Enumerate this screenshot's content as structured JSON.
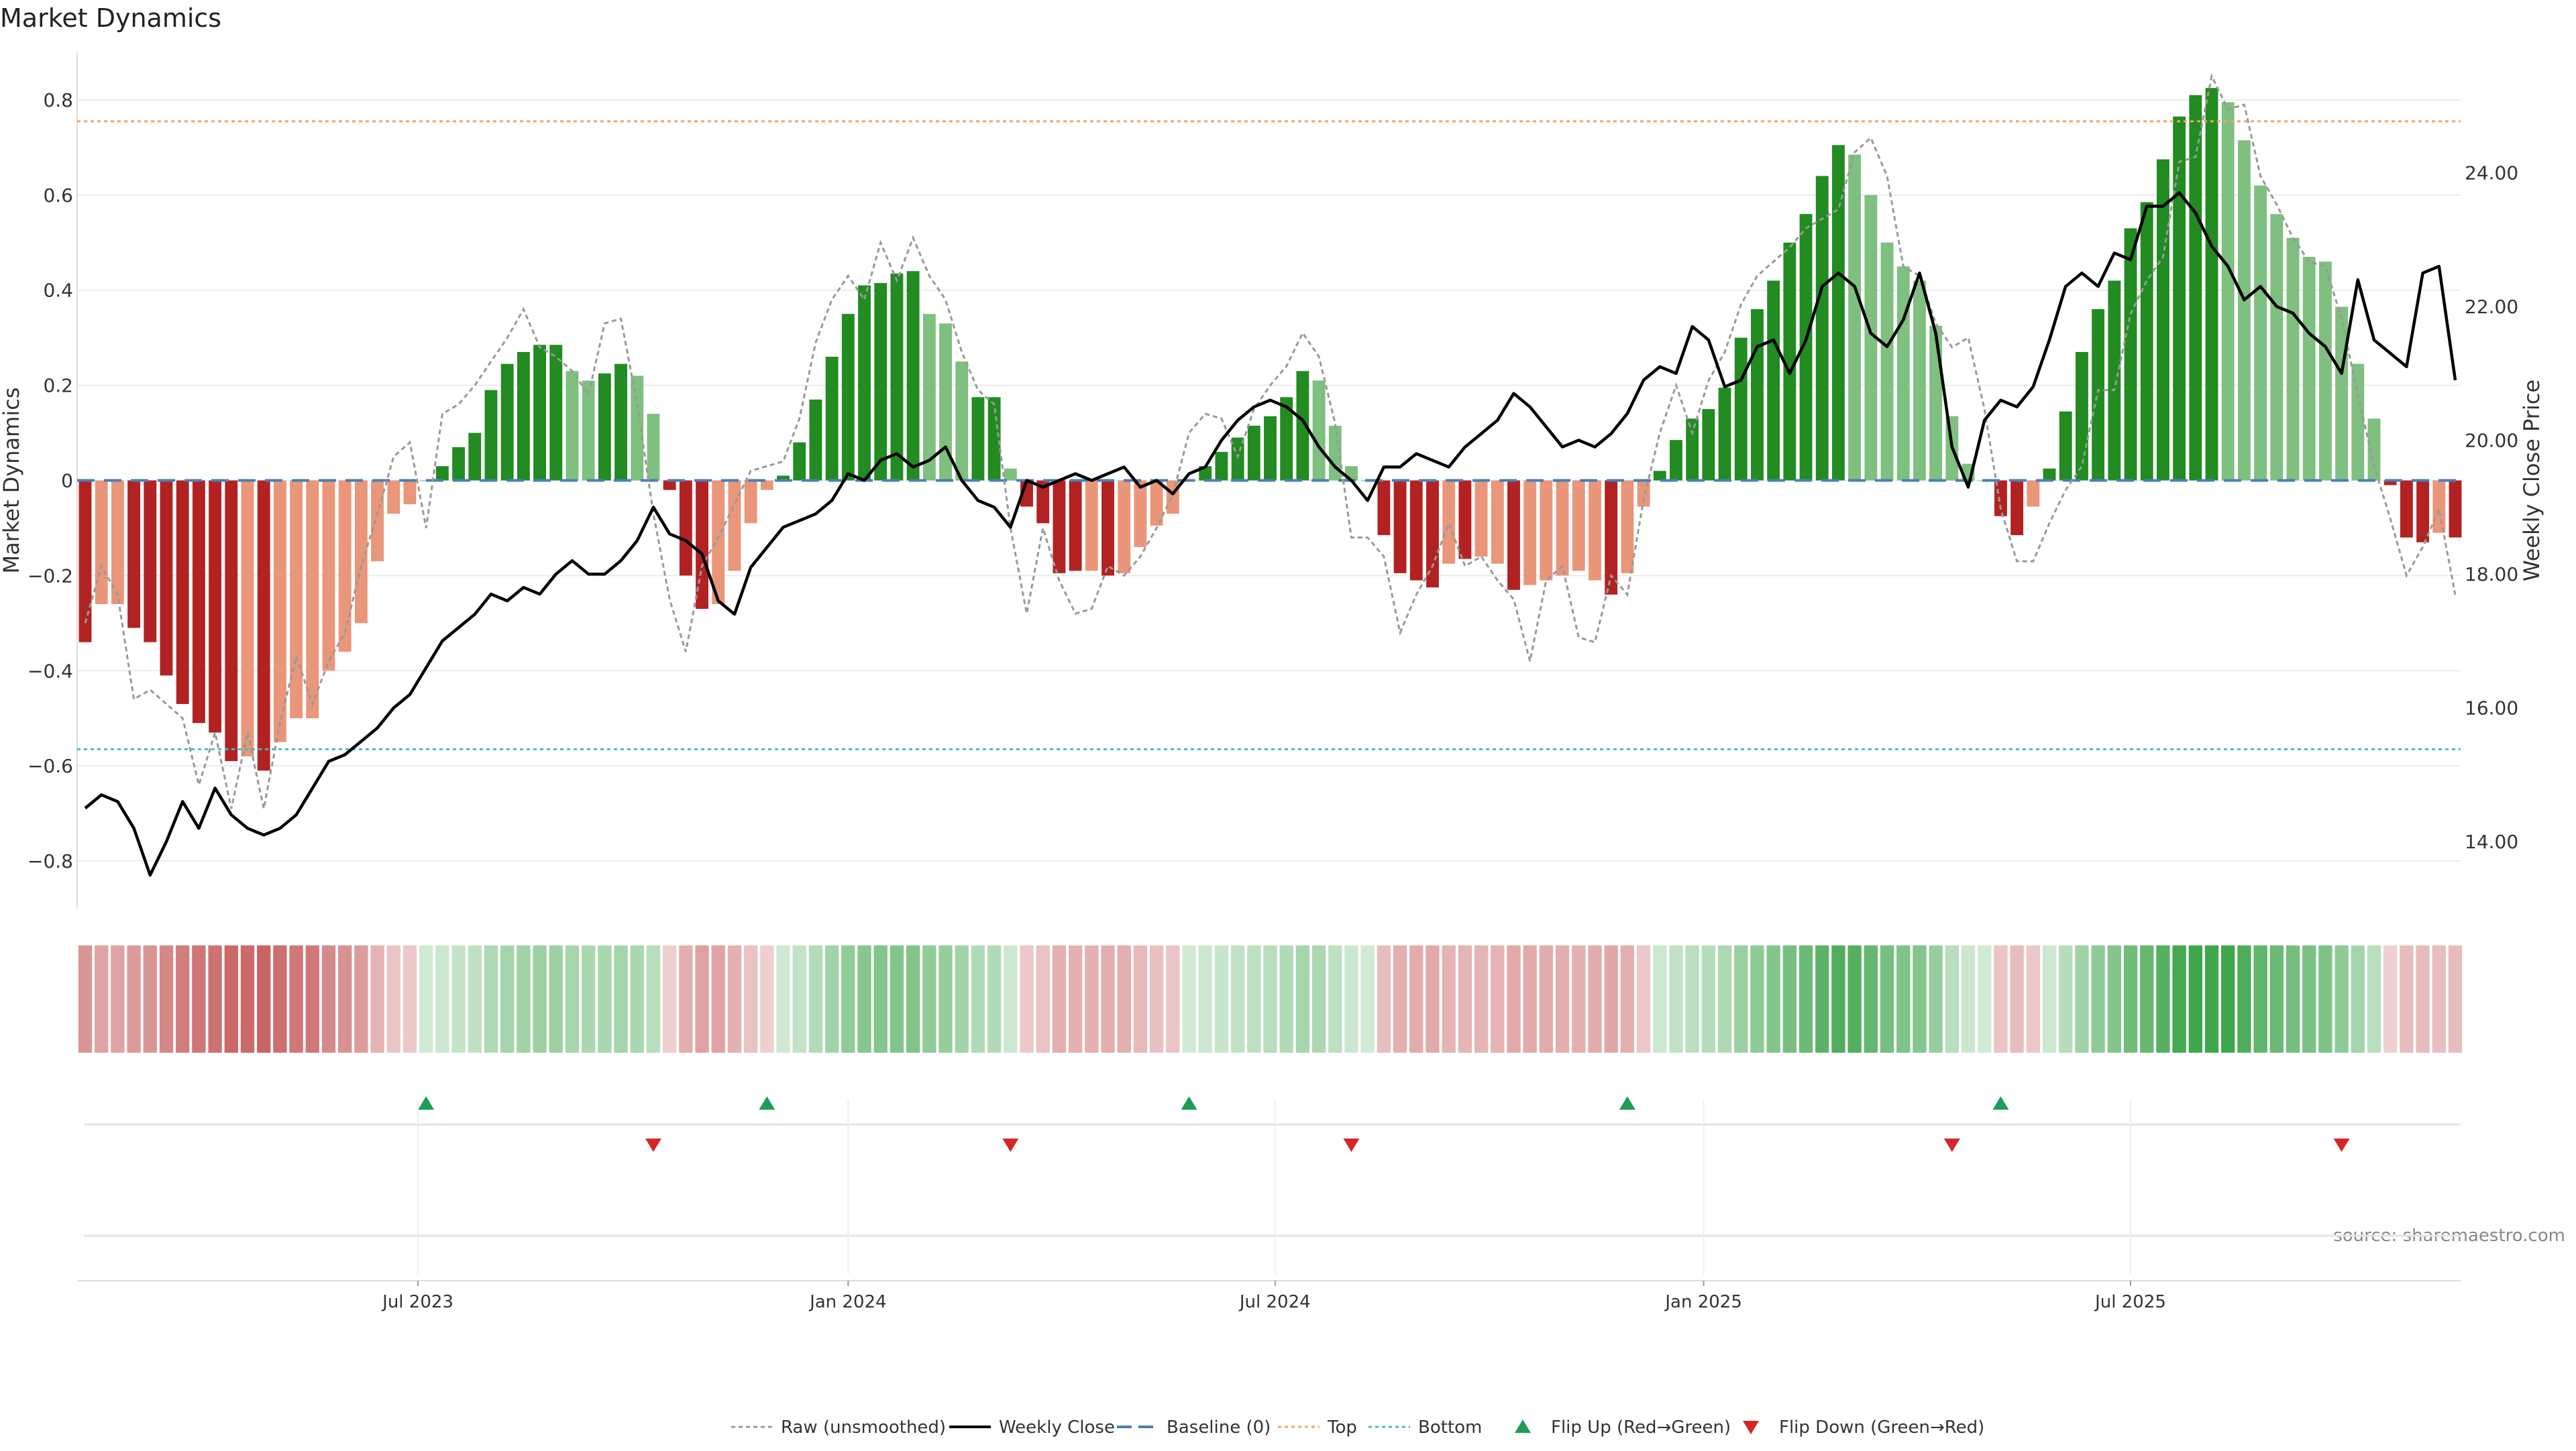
{
  "chart_data": {
    "type": "bar",
    "title": "Market Dynamics",
    "ylabel_left": "Market Dynamics",
    "ylabel_right": "Weekly Close Price",
    "source": "source: sharemaestro.com",
    "ylim_left": [
      -0.9,
      0.9
    ],
    "ylim_right": [
      13.0,
      25.8
    ],
    "y_ticks_left": [
      0.8,
      0.6,
      0.4,
      0.2,
      0,
      -0.2,
      -0.4,
      -0.6,
      -0.8
    ],
    "y_tick_labels_left": [
      "0.8",
      "0.6",
      "0.4",
      "0.2",
      "0",
      "−0.2",
      "−0.4",
      "−0.6",
      "−0.8"
    ],
    "y_ticks_right": [
      24,
      22,
      20,
      18,
      16,
      14
    ],
    "y_tick_labels_right": [
      "24.00",
      "22.00",
      "20.00",
      "18.00",
      "16.00",
      "14.00"
    ],
    "x_tick_labels": [
      {
        "week": 20.5,
        "label": "Jul 2023"
      },
      {
        "week": 47,
        "label": "Jan 2024"
      },
      {
        "week": 73.3,
        "label": "Jul 2024"
      },
      {
        "week": 99.7,
        "label": "Jan 2025"
      },
      {
        "week": 126,
        "label": "Jul 2025"
      }
    ],
    "top_level": 0.755,
    "bottom_level": -0.565,
    "grid": true,
    "legend_position": "bottom-center",
    "colors": {
      "strong_red": "#b22222",
      "weak_red": "#e9967a",
      "strong_green": "#228b22",
      "weak_green": "#7fbf7f",
      "top_line": "#f4a460",
      "bottom_line": "#40bfc4",
      "baseline": "#4a7fb5",
      "close_line": "#000000",
      "raw_line": "#999999",
      "flip_up": "#1f9d55",
      "flip_down": "#d62728"
    },
    "smoothed": [
      -0.34,
      -0.26,
      -0.26,
      -0.31,
      -0.34,
      -0.41,
      -0.47,
      -0.51,
      -0.53,
      -0.59,
      -0.58,
      -0.61,
      -0.55,
      -0.5,
      -0.5,
      -0.4,
      -0.36,
      -0.3,
      -0.17,
      -0.07,
      -0.05,
      0,
      0.03,
      0.07,
      0.1,
      0.19,
      0.245,
      0.27,
      0.285,
      0.285,
      0.23,
      0.21,
      0.225,
      0.245,
      0.22,
      0.14,
      -0.02,
      -0.2,
      -0.27,
      -0.26,
      -0.19,
      -0.09,
      -0.02,
      0.01,
      0.08,
      0.17,
      0.26,
      0.35,
      0.41,
      0.415,
      0.435,
      0.44,
      0.35,
      0.33,
      0.25,
      0.175,
      0.175,
      0.025,
      -0.055,
      -0.09,
      -0.195,
      -0.19,
      -0.19,
      -0.2,
      -0.195,
      -0.14,
      -0.095,
      -0.07,
      0,
      0.03,
      0.06,
      0.09,
      0.115,
      0.135,
      0.175,
      0.23,
      0.21,
      0.115,
      0.03,
      0,
      -0.115,
      -0.195,
      -0.21,
      -0.225,
      -0.175,
      -0.165,
      -0.16,
      -0.175,
      -0.23,
      -0.22,
      -0.21,
      -0.2,
      -0.19,
      -0.21,
      -0.24,
      -0.195,
      -0.055,
      0.02,
      0.085,
      0.13,
      0.15,
      0.195,
      0.3,
      0.36,
      0.42,
      0.5,
      0.56,
      0.64,
      0.705,
      0.685,
      0.6,
      0.5,
      0.45,
      0.42,
      0.325,
      0.135,
      0.035,
      0,
      -0.075,
      -0.115,
      -0.055,
      0.025,
      0.145,
      0.27,
      0.36,
      0.42,
      0.53,
      0.585,
      0.675,
      0.765,
      0.81,
      0.825,
      0.795,
      0.715,
      0.62,
      0.56,
      0.51,
      0.47,
      0.46,
      0.365,
      0.245,
      0.13,
      -0.01,
      -0.12,
      -0.13,
      -0.11,
      -0.12
    ],
    "strength": [
      "strong",
      "weak",
      "weak",
      "strong",
      "strong",
      "strong",
      "strong",
      "strong",
      "strong",
      "strong",
      "weak",
      "strong",
      "weak",
      "weak",
      "weak",
      "weak",
      "weak",
      "weak",
      "weak",
      "weak",
      "weak",
      "weak",
      "strong",
      "strong",
      "strong",
      "strong",
      "strong",
      "strong",
      "strong",
      "strong",
      "weak",
      "weak",
      "strong",
      "strong",
      "weak",
      "weak",
      "strong",
      "strong",
      "strong",
      "weak",
      "weak",
      "weak",
      "weak",
      "strong",
      "strong",
      "strong",
      "strong",
      "strong",
      "strong",
      "strong",
      "strong",
      "strong",
      "weak",
      "weak",
      "weak",
      "strong",
      "strong",
      "weak",
      "strong",
      "strong",
      "strong",
      "strong",
      "weak",
      "strong",
      "weak",
      "weak",
      "weak",
      "weak",
      "strong",
      "strong",
      "strong",
      "strong",
      "strong",
      "strong",
      "strong",
      "strong",
      "weak",
      "weak",
      "weak",
      "weak",
      "strong",
      "strong",
      "strong",
      "strong",
      "weak",
      "strong",
      "weak",
      "weak",
      "strong",
      "weak",
      "weak",
      "weak",
      "weak",
      "weak",
      "strong",
      "weak",
      "weak",
      "strong",
      "strong",
      "strong",
      "strong",
      "strong",
      "strong",
      "strong",
      "strong",
      "strong",
      "strong",
      "strong",
      "strong",
      "weak",
      "weak",
      "weak",
      "weak",
      "weak",
      "weak",
      "weak",
      "weak",
      "weak",
      "strong",
      "strong",
      "weak",
      "strong",
      "strong",
      "strong",
      "strong",
      "strong",
      "strong",
      "strong",
      "strong",
      "strong",
      "strong",
      "strong",
      "weak",
      "weak",
      "weak",
      "weak",
      "weak",
      "weak",
      "weak",
      "weak",
      "weak",
      "weak",
      "strong",
      "strong",
      "strong",
      "weak",
      "strong"
    ],
    "raw": [
      -0.3,
      -0.18,
      -0.24,
      -0.46,
      -0.44,
      -0.47,
      -0.5,
      -0.64,
      -0.53,
      -0.69,
      -0.53,
      -0.69,
      -0.51,
      -0.37,
      -0.47,
      -0.38,
      -0.32,
      -0.18,
      -0.07,
      0.05,
      0.08,
      -0.1,
      0.14,
      0.16,
      0.2,
      0.25,
      0.3,
      0.36,
      0.28,
      0.26,
      0.23,
      0.18,
      0.33,
      0.34,
      0.16,
      -0.07,
      -0.25,
      -0.36,
      -0.18,
      -0.12,
      -0.05,
      0.02,
      0.03,
      0.04,
      0.13,
      0.29,
      0.38,
      0.43,
      0.38,
      0.5,
      0.42,
      0.51,
      0.43,
      0.38,
      0.27,
      0.19,
      0.16,
      -0.1,
      -0.28,
      -0.1,
      -0.21,
      -0.28,
      -0.27,
      -0.18,
      -0.2,
      -0.16,
      -0.1,
      -0.03,
      0.1,
      0.14,
      0.13,
      0.05,
      0.15,
      0.2,
      0.24,
      0.31,
      0.26,
      0.12,
      -0.12,
      -0.12,
      -0.16,
      -0.32,
      -0.24,
      -0.18,
      -0.09,
      -0.18,
      -0.16,
      -0.21,
      -0.25,
      -0.38,
      -0.21,
      -0.18,
      -0.33,
      -0.34,
      -0.2,
      -0.24,
      -0.04,
      0.1,
      0.2,
      0.1,
      0.21,
      0.27,
      0.37,
      0.43,
      0.46,
      0.49,
      0.53,
      0.55,
      0.57,
      0.69,
      0.72,
      0.64,
      0.45,
      0.43,
      0.33,
      0.28,
      0.3,
      0.15,
      -0.06,
      -0.17,
      -0.17,
      -0.09,
      -0.02,
      0.03,
      0.19,
      0.19,
      0.35,
      0.42,
      0.47,
      0.67,
      0.68,
      0.85,
      0.78,
      0.79,
      0.64,
      0.58,
      0.51,
      0.46,
      0.45,
      0.34,
      0.18,
      0.03,
      -0.08,
      -0.2,
      -0.14,
      -0.06,
      -0.24
    ],
    "close": [
      14.5,
      14.7,
      14.6,
      14.2,
      13.5,
      14.0,
      14.6,
      14.2,
      14.8,
      14.4,
      14.2,
      14.1,
      14.2,
      14.4,
      14.8,
      15.2,
      15.3,
      15.5,
      15.7,
      16.0,
      16.2,
      16.6,
      17.0,
      17.2,
      17.4,
      17.7,
      17.6,
      17.8,
      17.7,
      18.0,
      18.2,
      18.0,
      18.0,
      18.2,
      18.5,
      19.0,
      18.6,
      18.5,
      18.3,
      17.6,
      17.4,
      18.1,
      18.4,
      18.7,
      18.8,
      18.9,
      19.1,
      19.5,
      19.4,
      19.7,
      19.8,
      19.6,
      19.7,
      19.9,
      19.4,
      19.1,
      19.0,
      18.7,
      19.4,
      19.3,
      19.4,
      19.5,
      19.4,
      19.5,
      19.6,
      19.3,
      19.4,
      19.2,
      19.5,
      19.6,
      20.0,
      20.3,
      20.5,
      20.6,
      20.5,
      20.3,
      19.9,
      19.6,
      19.4,
      19.1,
      19.6,
      19.6,
      19.8,
      19.7,
      19.6,
      19.9,
      20.1,
      20.3,
      20.7,
      20.5,
      20.2,
      19.9,
      20.0,
      19.9,
      20.1,
      20.4,
      20.9,
      21.1,
      21.0,
      21.7,
      21.5,
      20.8,
      20.9,
      21.4,
      21.5,
      21.0,
      21.5,
      22.3,
      22.5,
      22.3,
      21.6,
      21.4,
      21.8,
      22.5,
      21.6,
      19.9,
      19.3,
      20.3,
      20.6,
      20.5,
      20.8,
      21.5,
      22.3,
      22.5,
      22.3,
      22.8,
      22.7,
      23.5,
      23.5,
      23.7,
      23.4,
      22.9,
      22.6,
      22.1,
      22.3,
      22.0,
      21.9,
      21.6,
      21.4,
      21.0,
      22.4,
      21.5,
      21.3,
      21.1,
      22.5,
      22.6,
      20.9
    ],
    "flips_up": [
      21,
      42,
      68,
      95,
      118
    ],
    "flips_down": [
      35,
      57,
      78,
      115,
      139
    ],
    "legend": [
      {
        "label": "Raw (unsmoothed)",
        "style": "dotted-line"
      },
      {
        "label": "Weekly Close",
        "style": "solid-line"
      },
      {
        "label": "Baseline (0)",
        "style": "dashed-line"
      },
      {
        "label": "Top",
        "style": "dotted-line"
      },
      {
        "label": "Bottom",
        "style": "dotted-line"
      },
      {
        "label": "Flip Up (Red→Green)",
        "style": "triangle-up"
      },
      {
        "label": "Flip Down (Green→Red)",
        "style": "triangle-down"
      }
    ]
  }
}
